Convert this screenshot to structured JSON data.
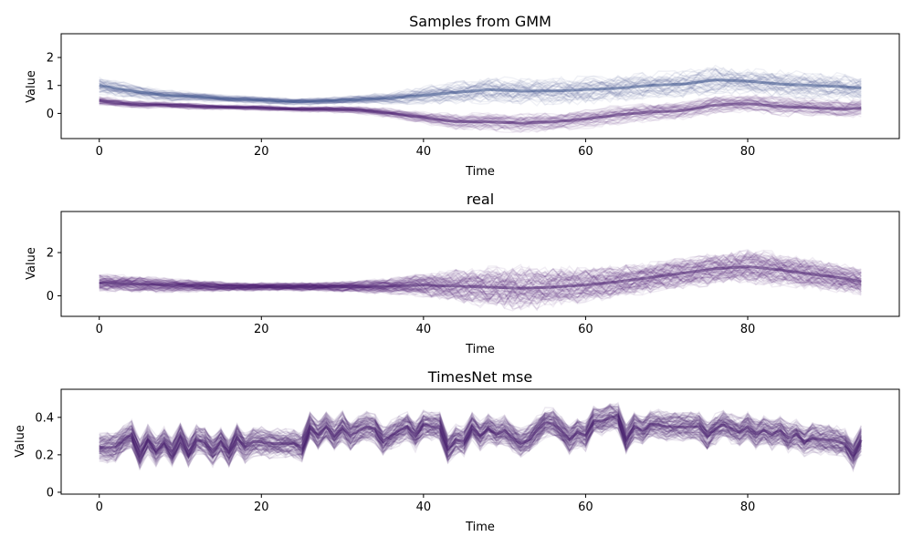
{
  "chart_data": [
    {
      "type": "line",
      "title": "Samples from GMM",
      "xlabel": "Time",
      "ylabel": "Value",
      "xlim": [
        -4.7,
        98.7
      ],
      "ylim": [
        -0.9,
        2.85
      ],
      "xticks": [
        0,
        20,
        40,
        60,
        80
      ],
      "yticks": [
        0,
        1,
        2
      ],
      "grid": false,
      "legend": "none",
      "line_alpha": 0.08,
      "n_samples_approx": 100,
      "series": [
        {
          "color": "#3b528b",
          "x": [
            0,
            4,
            8,
            12,
            16,
            20,
            24,
            28,
            32,
            36,
            40,
            44,
            48,
            52,
            56,
            60,
            64,
            68,
            72,
            76,
            80,
            84,
            88,
            92,
            94
          ],
          "values": [
            1.0,
            0.8,
            0.65,
            0.6,
            0.52,
            0.48,
            0.42,
            0.45,
            0.5,
            0.55,
            0.65,
            0.75,
            0.85,
            0.8,
            0.8,
            0.85,
            0.9,
            1.0,
            1.05,
            1.2,
            1.15,
            1.05,
            1.0,
            0.95,
            0.9
          ],
          "spread": [
            0.3,
            0.25,
            0.2,
            0.15,
            0.12,
            0.12,
            0.12,
            0.12,
            0.15,
            0.2,
            0.3,
            0.4,
            0.45,
            0.45,
            0.45,
            0.45,
            0.45,
            0.45,
            0.45,
            0.5,
            0.45,
            0.45,
            0.45,
            0.45,
            0.45
          ]
        },
        {
          "color": "#481f70",
          "x": [
            0,
            4,
            8,
            12,
            16,
            20,
            24,
            28,
            32,
            36,
            40,
            44,
            48,
            52,
            56,
            60,
            64,
            68,
            72,
            76,
            80,
            84,
            88,
            92,
            94
          ],
          "values": [
            0.45,
            0.32,
            0.3,
            0.25,
            0.22,
            0.2,
            0.15,
            0.15,
            0.12,
            0.0,
            -0.15,
            -0.3,
            -0.3,
            -0.35,
            -0.3,
            -0.2,
            -0.05,
            0.05,
            0.1,
            0.3,
            0.35,
            0.25,
            0.2,
            0.15,
            0.2
          ],
          "spread": [
            0.15,
            0.12,
            0.1,
            0.1,
            0.08,
            0.08,
            0.08,
            0.1,
            0.12,
            0.15,
            0.2,
            0.25,
            0.28,
            0.3,
            0.3,
            0.3,
            0.3,
            0.3,
            0.3,
            0.3,
            0.3,
            0.3,
            0.3,
            0.3,
            0.3
          ]
        }
      ]
    },
    {
      "type": "line",
      "title": "real",
      "xlabel": "Time",
      "ylabel": "Value",
      "xlim": [
        -4.7,
        98.7
      ],
      "ylim": [
        -0.95,
        3.9
      ],
      "xticks": [
        0,
        20,
        40,
        60,
        80
      ],
      "yticks": [
        0,
        2
      ],
      "grid": false,
      "legend": "none",
      "line_alpha": 0.08,
      "n_samples_approx": 100,
      "series": [
        {
          "color": "#481f70",
          "x": [
            0,
            4,
            8,
            12,
            16,
            20,
            24,
            28,
            32,
            36,
            40,
            44,
            48,
            52,
            56,
            60,
            64,
            68,
            72,
            76,
            80,
            84,
            88,
            92,
            94
          ],
          "values": [
            0.6,
            0.55,
            0.5,
            0.45,
            0.42,
            0.42,
            0.42,
            0.42,
            0.42,
            0.45,
            0.5,
            0.45,
            0.4,
            0.35,
            0.4,
            0.5,
            0.65,
            0.85,
            1.05,
            1.25,
            1.35,
            1.2,
            1.0,
            0.8,
            0.65
          ],
          "spread": [
            0.35,
            0.35,
            0.3,
            0.25,
            0.2,
            0.18,
            0.18,
            0.2,
            0.25,
            0.35,
            0.5,
            0.7,
            0.85,
            0.95,
            0.85,
            0.75,
            0.7,
            0.65,
            0.65,
            0.7,
            0.75,
            0.7,
            0.65,
            0.6,
            0.55
          ]
        }
      ]
    },
    {
      "type": "line",
      "title": "TimesNet mse",
      "xlabel": "Time",
      "ylabel": "Value",
      "xlim": [
        -4.7,
        98.7
      ],
      "ylim": [
        -0.01,
        0.55
      ],
      "xticks": [
        0,
        20,
        40,
        60,
        80
      ],
      "yticks": [
        0.0,
        0.2,
        0.4
      ],
      "grid": false,
      "legend": "none",
      "line_alpha": 0.1,
      "n_samples_approx": 100,
      "series": [
        {
          "color": "#481f70",
          "x": [
            0,
            1,
            2,
            3,
            4,
            5,
            6,
            7,
            8,
            9,
            10,
            11,
            12,
            13,
            14,
            15,
            16,
            17,
            18,
            19,
            20,
            21,
            22,
            23,
            24,
            25,
            26,
            27,
            28,
            29,
            30,
            31,
            32,
            33,
            34,
            35,
            36,
            37,
            38,
            39,
            40,
            41,
            42,
            43,
            44,
            45,
            46,
            47,
            48,
            49,
            50,
            51,
            52,
            53,
            54,
            55,
            56,
            57,
            58,
            59,
            60,
            61,
            62,
            63,
            64,
            65,
            66,
            67,
            68,
            69,
            70,
            71,
            72,
            73,
            74,
            75,
            76,
            77,
            78,
            79,
            80,
            81,
            82,
            83,
            84,
            85,
            86,
            87,
            88,
            89,
            90,
            91,
            92,
            93,
            94
          ],
          "values": [
            0.24,
            0.24,
            0.24,
            0.28,
            0.31,
            0.2,
            0.28,
            0.22,
            0.27,
            0.21,
            0.29,
            0.21,
            0.28,
            0.27,
            0.22,
            0.27,
            0.21,
            0.29,
            0.24,
            0.27,
            0.27,
            0.26,
            0.26,
            0.26,
            0.26,
            0.24,
            0.35,
            0.3,
            0.35,
            0.3,
            0.35,
            0.3,
            0.33,
            0.35,
            0.34,
            0.27,
            0.3,
            0.33,
            0.35,
            0.3,
            0.36,
            0.35,
            0.35,
            0.23,
            0.28,
            0.27,
            0.35,
            0.3,
            0.34,
            0.31,
            0.33,
            0.29,
            0.26,
            0.28,
            0.33,
            0.37,
            0.37,
            0.33,
            0.28,
            0.32,
            0.3,
            0.38,
            0.38,
            0.4,
            0.4,
            0.28,
            0.35,
            0.33,
            0.36,
            0.36,
            0.35,
            0.35,
            0.35,
            0.35,
            0.35,
            0.3,
            0.34,
            0.36,
            0.34,
            0.32,
            0.35,
            0.31,
            0.33,
            0.31,
            0.33,
            0.29,
            0.31,
            0.27,
            0.29,
            0.28,
            0.28,
            0.27,
            0.26,
            0.2,
            0.28
          ],
          "spread": [
            0.07,
            0.07,
            0.07,
            0.07,
            0.07,
            0.07,
            0.07,
            0.07,
            0.07,
            0.07,
            0.07,
            0.07,
            0.07,
            0.07,
            0.07,
            0.07,
            0.07,
            0.07,
            0.07,
            0.07,
            0.07,
            0.07,
            0.07,
            0.07,
            0.07,
            0.07,
            0.07,
            0.07,
            0.07,
            0.07,
            0.07,
            0.07,
            0.07,
            0.07,
            0.07,
            0.07,
            0.07,
            0.07,
            0.07,
            0.07,
            0.07,
            0.07,
            0.07,
            0.07,
            0.07,
            0.07,
            0.07,
            0.07,
            0.07,
            0.07,
            0.07,
            0.07,
            0.07,
            0.07,
            0.07,
            0.07,
            0.07,
            0.07,
            0.07,
            0.07,
            0.07,
            0.07,
            0.07,
            0.07,
            0.07,
            0.07,
            0.07,
            0.07,
            0.07,
            0.07,
            0.07,
            0.07,
            0.07,
            0.07,
            0.07,
            0.07,
            0.07,
            0.07,
            0.07,
            0.07,
            0.07,
            0.07,
            0.07,
            0.07,
            0.07,
            0.07,
            0.07,
            0.07,
            0.07,
            0.07,
            0.07,
            0.07,
            0.07,
            0.07,
            0.07
          ]
        }
      ]
    }
  ]
}
